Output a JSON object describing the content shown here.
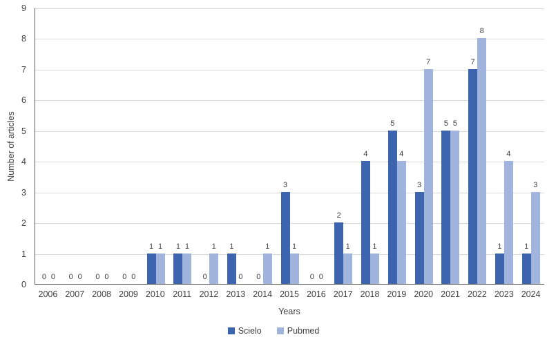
{
  "chart_data": {
    "type": "bar",
    "categories": [
      "2006",
      "2007",
      "2008",
      "2009",
      "2010",
      "2011",
      "2012",
      "2013",
      "2014",
      "2015",
      "2016",
      "2017",
      "2018",
      "2019",
      "2020",
      "2021",
      "2022",
      "2023",
      "2024"
    ],
    "series": [
      {
        "name": "Scielo",
        "color": "#3d64ae",
        "values": [
          0,
          0,
          0,
          0,
          1,
          1,
          0,
          1,
          0,
          3,
          0,
          2,
          4,
          5,
          3,
          5,
          7,
          1,
          1
        ]
      },
      {
        "name": "Pubmed",
        "color": "#a0b4de",
        "values": [
          0,
          0,
          0,
          0,
          1,
          1,
          1,
          0,
          1,
          1,
          0,
          1,
          1,
          4,
          7,
          5,
          8,
          4,
          3
        ]
      }
    ],
    "title": "",
    "xlabel": "Years",
    "ylabel": "Number of articles",
    "ylim": [
      0,
      9
    ],
    "yticks": [
      0,
      1,
      2,
      3,
      4,
      5,
      6,
      7,
      8,
      9
    ],
    "grid": true,
    "data_labels": true,
    "legend_position": "bottom"
  },
  "colors": {
    "scielo": "#3d64ae",
    "pubmed": "#a0b4de",
    "gridline": "#d9d9d9",
    "axis_line": "#595959",
    "text": "#404040"
  }
}
